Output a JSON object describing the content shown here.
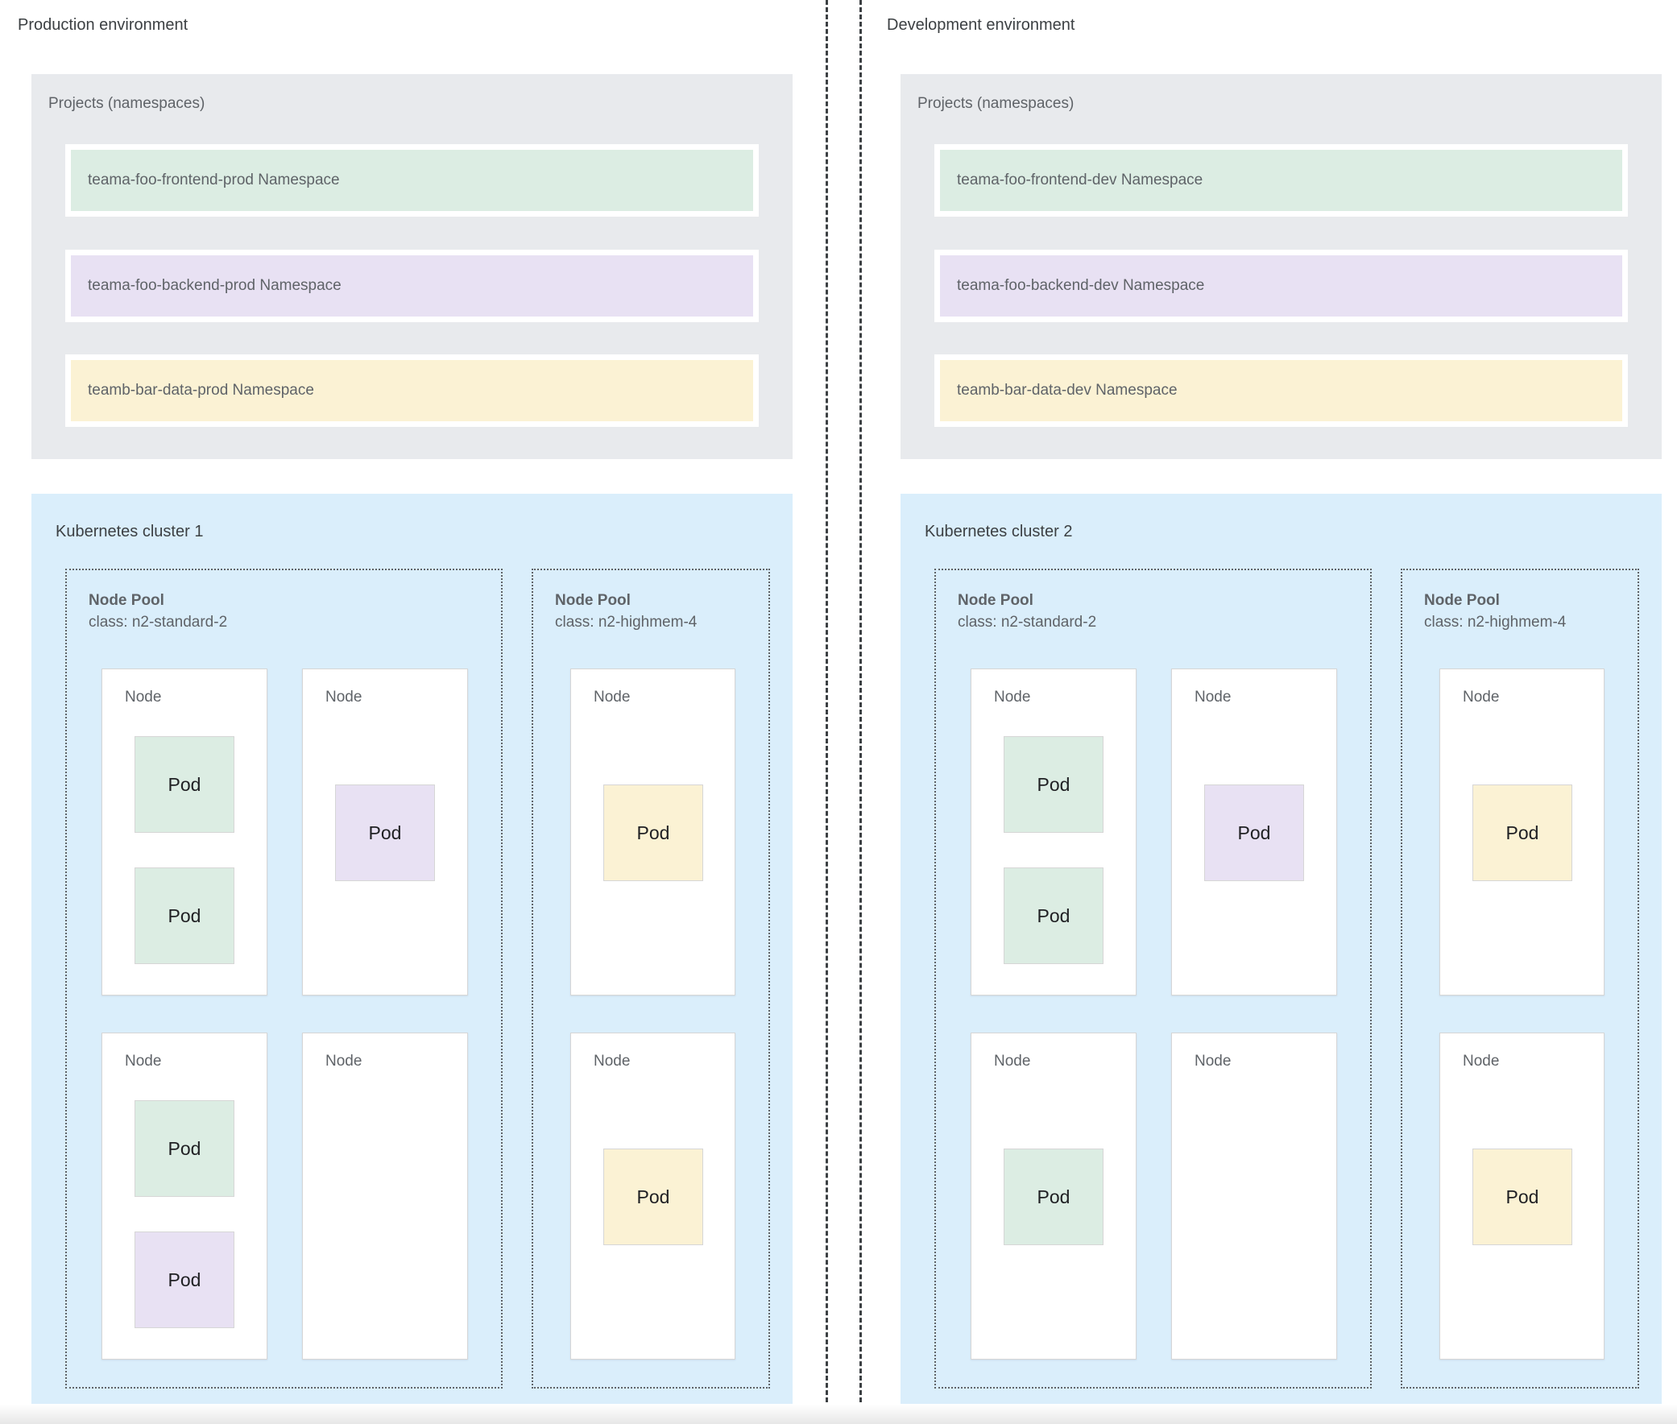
{
  "page": {
    "background": "#ffffff"
  },
  "colors": {
    "panel_gray": "#e8eaed",
    "cluster_blue": "#daeefb",
    "green": "#dcede3",
    "purple": "#e8e1f3",
    "yellow": "#fbf2d4",
    "label_gray": "#5f6368",
    "title_gray": "#3c4043",
    "pod_text": "#202124",
    "box_border": "#d6d6d6",
    "dashed_border": "#5f6368"
  },
  "environments": [
    {
      "title": "Production environment",
      "projects": {
        "label": "Projects (namespaces)",
        "namespaces": [
          {
            "label": "teama-foo-frontend-prod Namespace",
            "color": "green"
          },
          {
            "label": "teama-foo-backend-prod Namespace",
            "color": "purple"
          },
          {
            "label": "teamb-bar-data-prod Namespace",
            "color": "yellow"
          }
        ]
      },
      "cluster": {
        "title": "Kubernetes cluster 1",
        "node_pools": [
          {
            "name": "Node Pool",
            "class_label": "class: n2-standard-2",
            "nodes": [
              {
                "label": "Node",
                "pods": [
                  {
                    "label": "Pod",
                    "color": "green",
                    "position": "top"
                  },
                  {
                    "label": "Pod",
                    "color": "green",
                    "position": "second"
                  }
                ]
              },
              {
                "label": "Node",
                "pods": [
                  {
                    "label": "Pod",
                    "color": "purple",
                    "position": "center"
                  }
                ]
              },
              {
                "label": "Node",
                "pods": [
                  {
                    "label": "Pod",
                    "color": "green",
                    "position": "top"
                  },
                  {
                    "label": "Pod",
                    "color": "purple",
                    "position": "second"
                  }
                ]
              },
              {
                "label": "Node",
                "pods": []
              }
            ]
          },
          {
            "name": "Node Pool",
            "class_label": "class: n2-highmem-4",
            "nodes": [
              {
                "label": "Node",
                "pods": [
                  {
                    "label": "Pod",
                    "color": "yellow",
                    "position": "center"
                  }
                ]
              },
              {
                "label": "Node",
                "pods": [
                  {
                    "label": "Pod",
                    "color": "yellow",
                    "position": "center"
                  }
                ]
              }
            ]
          }
        ]
      }
    },
    {
      "title": "Development environment",
      "projects": {
        "label": "Projects (namespaces)",
        "namespaces": [
          {
            "label": "teama-foo-frontend-dev Namespace",
            "color": "green"
          },
          {
            "label": "teama-foo-backend-dev Namespace",
            "color": "purple"
          },
          {
            "label": "teamb-bar-data-dev Namespace",
            "color": "yellow"
          }
        ]
      },
      "cluster": {
        "title": "Kubernetes cluster 2",
        "node_pools": [
          {
            "name": "Node Pool",
            "class_label": "class: n2-standard-2",
            "nodes": [
              {
                "label": "Node",
                "pods": [
                  {
                    "label": "Pod",
                    "color": "green",
                    "position": "top"
                  },
                  {
                    "label": "Pod",
                    "color": "green",
                    "position": "second"
                  }
                ]
              },
              {
                "label": "Node",
                "pods": [
                  {
                    "label": "Pod",
                    "color": "purple",
                    "position": "center"
                  }
                ]
              },
              {
                "label": "Node",
                "pods": [
                  {
                    "label": "Pod",
                    "color": "green",
                    "position": "center"
                  }
                ]
              },
              {
                "label": "Node",
                "pods": []
              }
            ]
          },
          {
            "name": "Node Pool",
            "class_label": "class: n2-highmem-4",
            "nodes": [
              {
                "label": "Node",
                "pods": [
                  {
                    "label": "Pod",
                    "color": "yellow",
                    "position": "center"
                  }
                ]
              },
              {
                "label": "Node",
                "pods": [
                  {
                    "label": "Pod",
                    "color": "yellow",
                    "position": "center"
                  }
                ]
              }
            ]
          }
        ]
      }
    }
  ]
}
